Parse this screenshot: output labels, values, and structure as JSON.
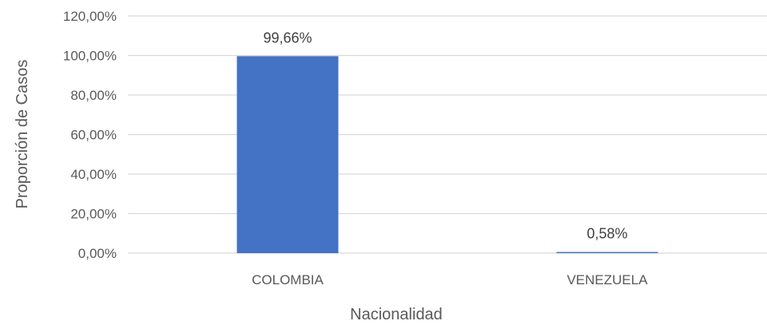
{
  "chart_data": {
    "type": "bar",
    "categories": [
      "COLOMBIA",
      "VENEZUELA"
    ],
    "values": [
      99.66,
      0.58
    ],
    "data_labels": [
      "99,66%",
      "0,58%"
    ],
    "xlabel": "Nacionalidad",
    "ylabel": "Proporción de Casos",
    "ylim": [
      0,
      120
    ],
    "yticks": [
      0,
      20,
      40,
      60,
      80,
      100,
      120
    ],
    "ytick_labels": [
      "0,00%",
      "20,00%",
      "40,00%",
      "60,00%",
      "80,00%",
      "100,00%",
      "120,00%"
    ],
    "grid": true,
    "legend": "none",
    "colors": {
      "bar": "#4472C4",
      "grid": "#D9D9D9"
    }
  }
}
